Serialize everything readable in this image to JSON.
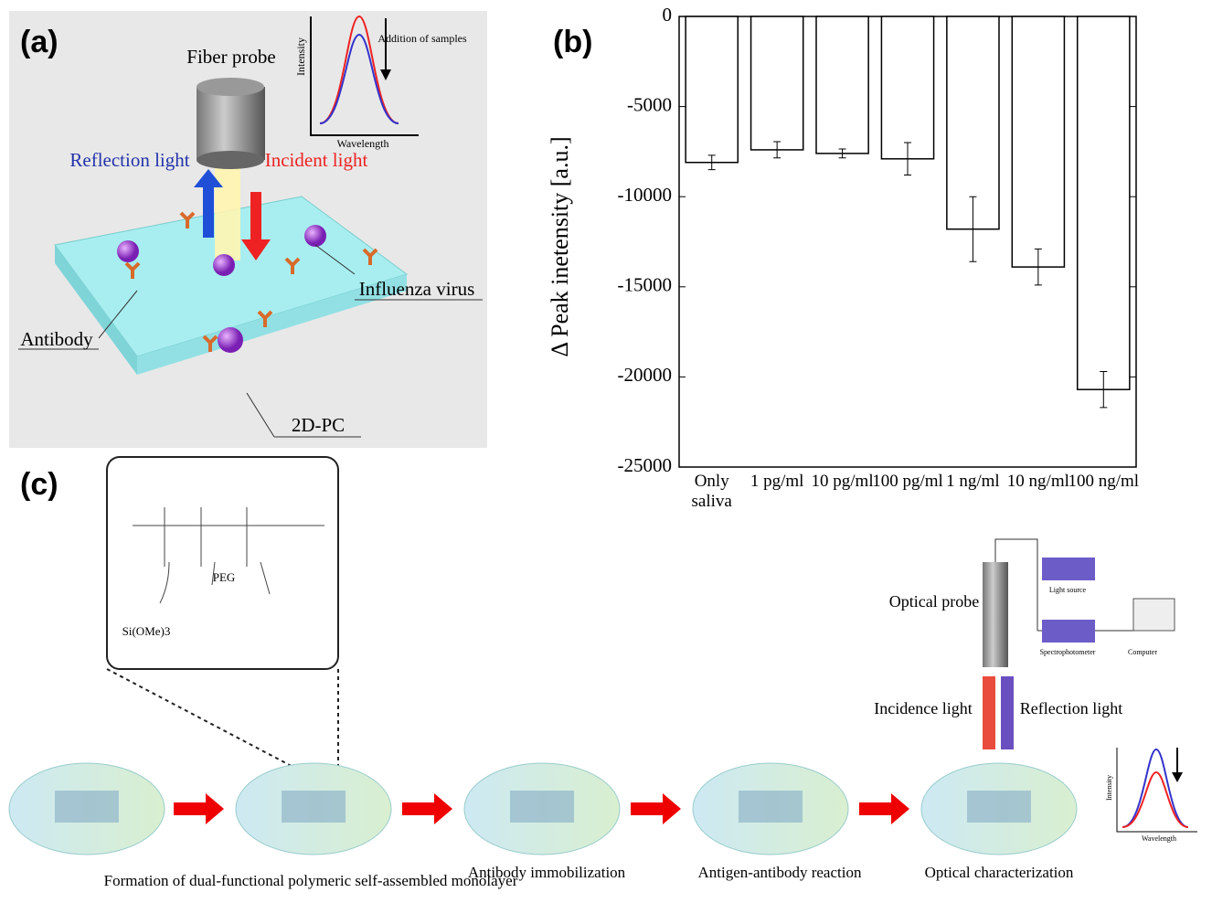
{
  "chart_data": {
    "type": "bar",
    "panel_label": "(b)",
    "y_label": "Δ Peak inetensity [a.u.]",
    "categories": [
      "Only\nsaliva",
      "1 pg/ml",
      "10 pg/ml",
      "100 pg/ml",
      "1 ng/ml",
      "10 ng/ml",
      "100 ng/ml"
    ],
    "values": [
      -8100,
      -7400,
      -7600,
      -7900,
      -11800,
      -13900,
      -20700
    ],
    "errors": [
      400,
      450,
      250,
      900,
      1800,
      1000,
      1000
    ],
    "color": "#ffffff",
    "ylim": [
      -25000,
      0
    ],
    "yticks": [
      0,
      -5000,
      -10000,
      -15000,
      -20000,
      -25000
    ]
  },
  "panel_a": {
    "label": "(a)",
    "fiber_probe": "Fiber probe",
    "reflection": "Reflection light",
    "incident": "Incident light",
    "virus": "Influenza virus",
    "antibody": "Antibody",
    "substrate": "2D-PC",
    "inset_y": "Intensity",
    "inset_x": "Wavelength",
    "inset_note": "Addition of\nsamples"
  },
  "panel_c": {
    "label": "(c)",
    "peg": "PEG",
    "silane": "Si(OMe)3",
    "optical_probe": "Optical probe",
    "light_source": "Light source",
    "spectrophotometer": "Spectrophotometer",
    "computer": "Computer",
    "incidence": "Incidence light",
    "reflection": "Reflection light",
    "inset_y": "Intensity",
    "inset_x": "Wavelength",
    "steps": [
      "Formation of dual-functional\npolymeric self-assembled monolayer",
      "Antibody immobilization",
      "Antigen-antibody reaction",
      "Optical characterization"
    ]
  }
}
